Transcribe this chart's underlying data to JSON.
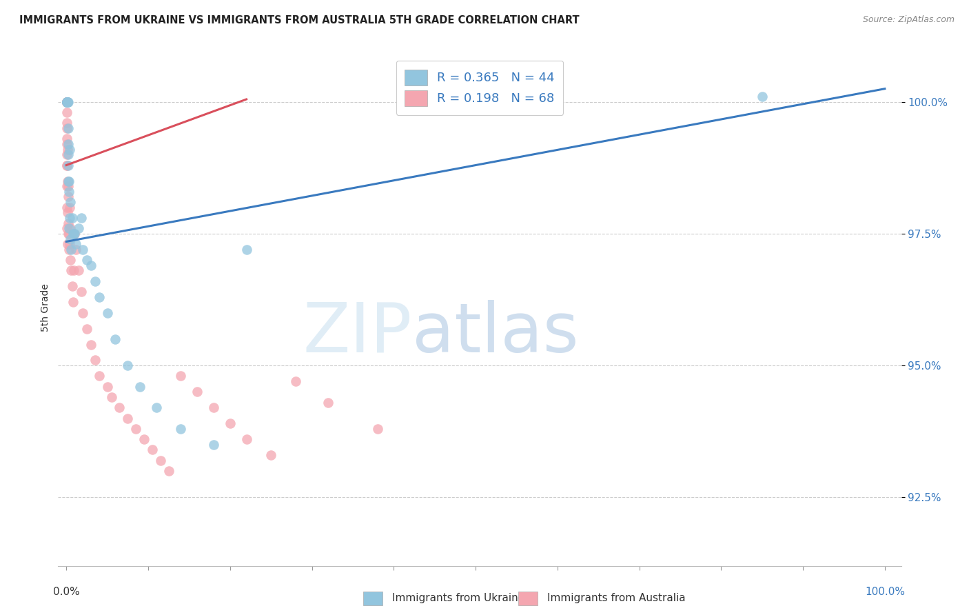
{
  "title": "IMMIGRANTS FROM UKRAINE VS IMMIGRANTS FROM AUSTRALIA 5TH GRADE CORRELATION CHART",
  "source": "Source: ZipAtlas.com",
  "ylabel": "5th Grade",
  "ukraine_label": "Immigrants from Ukraine",
  "australia_label": "Immigrants from Australia",
  "ukraine_R": "0.365",
  "ukraine_N": "44",
  "australia_R": "0.198",
  "australia_N": "68",
  "yticks": [
    92.5,
    95.0,
    97.5,
    100.0
  ],
  "ytick_labels": [
    "92.5%",
    "95.0%",
    "97.5%",
    "100.0%"
  ],
  "ylim": [
    91.2,
    101.0
  ],
  "xlim": [
    -1.0,
    102.0
  ],
  "ukraine_color": "#92c5de",
  "australia_color": "#f4a6b0",
  "ukraine_line_color": "#3a7abf",
  "australia_line_color": "#d94f5c",
  "ukraine_x": [
    0.1,
    0.1,
    0.1,
    0.1,
    0.1,
    0.1,
    0.15,
    0.15,
    0.15,
    0.2,
    0.2,
    0.2,
    0.2,
    0.25,
    0.25,
    0.3,
    0.3,
    0.35,
    0.4,
    0.4,
    0.5,
    0.5,
    0.6,
    0.7,
    0.8,
    0.9,
    1.0,
    1.2,
    1.5,
    1.8,
    2.0,
    2.5,
    3.0,
    3.5,
    4.0,
    5.0,
    6.0,
    7.5,
    9.0,
    11.0,
    14.0,
    18.0,
    22.0,
    85.0
  ],
  "ukraine_y": [
    100.0,
    100.0,
    100.0,
    100.0,
    100.0,
    100.0,
    100.0,
    100.0,
    100.0,
    100.0,
    99.5,
    99.0,
    98.5,
    98.8,
    99.2,
    98.3,
    97.6,
    98.5,
    97.8,
    99.1,
    98.1,
    97.4,
    97.2,
    97.8,
    97.5,
    97.5,
    97.5,
    97.3,
    97.6,
    97.8,
    97.2,
    97.0,
    96.9,
    96.6,
    96.3,
    96.0,
    95.5,
    95.0,
    94.6,
    94.2,
    93.8,
    93.5,
    97.2,
    100.1
  ],
  "australia_x": [
    0.05,
    0.05,
    0.05,
    0.05,
    0.05,
    0.05,
    0.05,
    0.05,
    0.05,
    0.05,
    0.05,
    0.05,
    0.05,
    0.05,
    0.05,
    0.05,
    0.05,
    0.1,
    0.1,
    0.1,
    0.1,
    0.1,
    0.1,
    0.15,
    0.15,
    0.15,
    0.15,
    0.2,
    0.2,
    0.25,
    0.25,
    0.3,
    0.35,
    0.4,
    0.4,
    0.5,
    0.5,
    0.6,
    0.7,
    0.8,
    0.9,
    1.0,
    1.2,
    1.5,
    1.8,
    2.0,
    2.5,
    3.0,
    3.5,
    4.0,
    5.0,
    5.5,
    6.5,
    7.5,
    8.5,
    9.5,
    10.5,
    11.5,
    12.5,
    14.0,
    16.0,
    18.0,
    20.0,
    22.0,
    25.0,
    28.0,
    32.0,
    38.0
  ],
  "australia_y": [
    100.0,
    100.0,
    100.0,
    100.0,
    100.0,
    100.0,
    100.0,
    100.0,
    100.0,
    100.0,
    100.0,
    100.0,
    99.8,
    99.5,
    99.3,
    99.0,
    98.8,
    99.6,
    99.2,
    98.8,
    98.4,
    98.0,
    97.6,
    99.1,
    98.5,
    97.9,
    97.3,
    98.2,
    97.5,
    98.4,
    97.7,
    97.5,
    97.2,
    98.0,
    97.3,
    97.6,
    97.0,
    96.8,
    96.5,
    96.2,
    96.8,
    97.5,
    97.2,
    96.8,
    96.4,
    96.0,
    95.7,
    95.4,
    95.1,
    94.8,
    94.6,
    94.4,
    94.2,
    94.0,
    93.8,
    93.6,
    93.4,
    93.2,
    93.0,
    94.8,
    94.5,
    94.2,
    93.9,
    93.6,
    93.3,
    94.7,
    94.3,
    93.8
  ],
  "watermark_zip": "ZIP",
  "watermark_atlas": "atlas",
  "xtick_positions": [
    0,
    10,
    20,
    30,
    40,
    50,
    60,
    70,
    80,
    90,
    100
  ]
}
